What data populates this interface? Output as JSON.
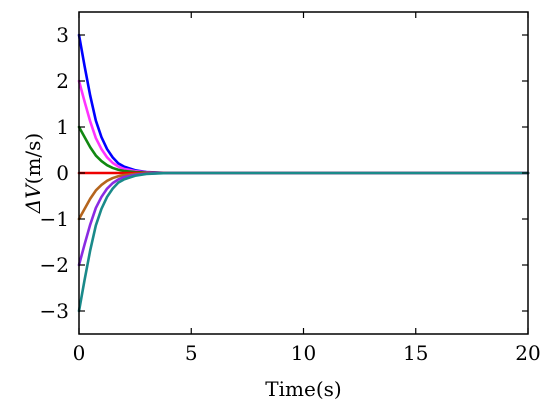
{
  "chart_data": {
    "type": "line",
    "xlabel": "Time(s)",
    "ylabel": {
      "italic": "ΔV",
      "rest": "(m/s)"
    },
    "xlim": [
      0,
      20
    ],
    "ylim": [
      -3.5,
      3.5
    ],
    "xticks": [
      0,
      5,
      10,
      15,
      20
    ],
    "yticks": [
      3,
      2,
      1,
      0,
      -1,
      -2,
      -3
    ],
    "ytick_labels": [
      "3",
      "2",
      "1",
      "0",
      "−1",
      "−2",
      "−3"
    ],
    "grid": false,
    "legend": "none",
    "x": [
      0,
      0.25,
      0.5,
      0.75,
      1.0,
      1.25,
      1.5,
      1.75,
      2.0,
      2.5,
      3.0,
      3.5,
      4.0,
      5.0,
      10.0,
      15.0,
      20.0
    ],
    "series": [
      {
        "color": "#0000ff",
        "values": [
          3.0,
          2.32,
          1.68,
          1.14,
          0.78,
          0.52,
          0.34,
          0.21,
          0.14,
          0.06,
          0.02,
          0.01,
          0.0,
          0.0,
          0.0,
          0.0,
          0.0
        ]
      },
      {
        "color": "#ff33ff",
        "values": [
          2.0,
          1.55,
          1.12,
          0.76,
          0.52,
          0.34,
          0.22,
          0.14,
          0.09,
          0.04,
          0.015,
          0.005,
          0.0,
          0.0,
          0.0,
          0.0,
          0.0
        ]
      },
      {
        "color": "#118811",
        "values": [
          1.0,
          0.78,
          0.56,
          0.38,
          0.26,
          0.17,
          0.11,
          0.07,
          0.045,
          0.02,
          0.008,
          0.003,
          0.0,
          0.0,
          0.0,
          0.0,
          0.0
        ]
      },
      {
        "color": "#ee0000",
        "values": [
          0,
          0,
          0,
          0,
          0,
          0,
          0,
          0,
          0,
          0,
          0,
          0,
          0,
          0,
          0,
          0,
          0
        ]
      },
      {
        "color": "#b5651d",
        "values": [
          -1.0,
          -0.78,
          -0.56,
          -0.38,
          -0.26,
          -0.17,
          -0.11,
          -0.07,
          -0.045,
          -0.02,
          -0.008,
          -0.003,
          0.0,
          0.0,
          0.0,
          0.0,
          0.0
        ]
      },
      {
        "color": "#8a2be2",
        "values": [
          -2.0,
          -1.55,
          -1.12,
          -0.76,
          -0.52,
          -0.34,
          -0.22,
          -0.14,
          -0.09,
          -0.04,
          -0.015,
          -0.005,
          0.0,
          0.0,
          0.0,
          0.0,
          0.0
        ]
      },
      {
        "color": "#1a8a8a",
        "values": [
          -3.0,
          -2.32,
          -1.68,
          -1.14,
          -0.78,
          -0.52,
          -0.34,
          -0.21,
          -0.14,
          -0.06,
          -0.02,
          -0.01,
          0.0,
          0.0,
          0.0,
          0.0,
          0.0
        ]
      }
    ]
  }
}
